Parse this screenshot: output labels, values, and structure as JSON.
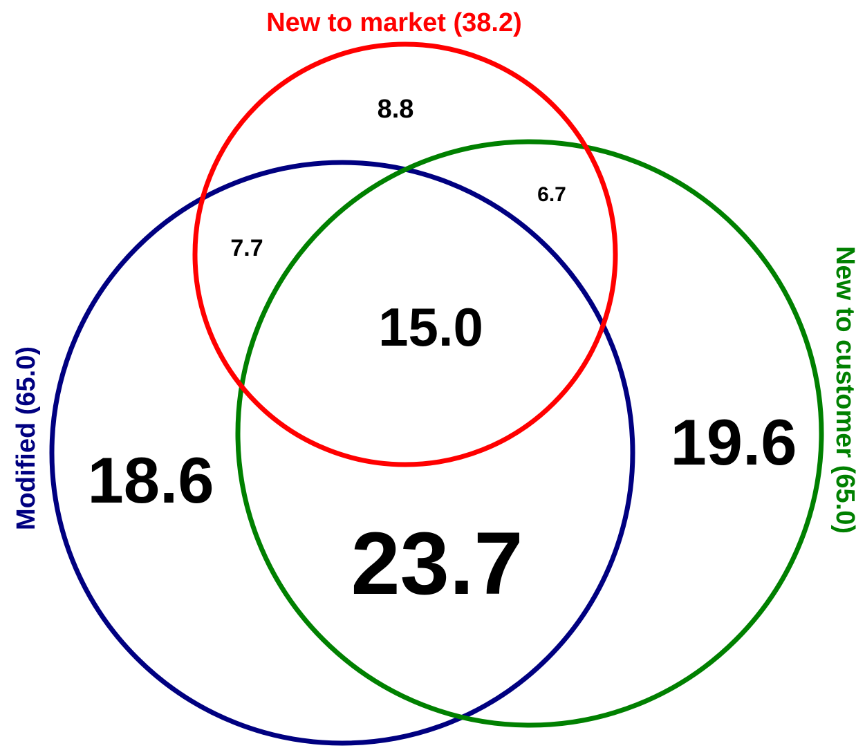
{
  "diagram": {
    "sets": {
      "new_to_market": {
        "label": "New to market (38.2)",
        "color": "#ff0000"
      },
      "modified": {
        "label": "Modified (65.0)",
        "color": "#000080"
      },
      "new_to_customer": {
        "label": "New to customer (65.0)",
        "color": "#008000"
      }
    },
    "regions": {
      "market_only": "8.8",
      "market_and_customer": "6.7",
      "market_and_modified": "7.7",
      "all_three": "15.0",
      "modified_only": "18.6",
      "customer_only": "19.6",
      "modified_and_customer": "23.7"
    }
  }
}
